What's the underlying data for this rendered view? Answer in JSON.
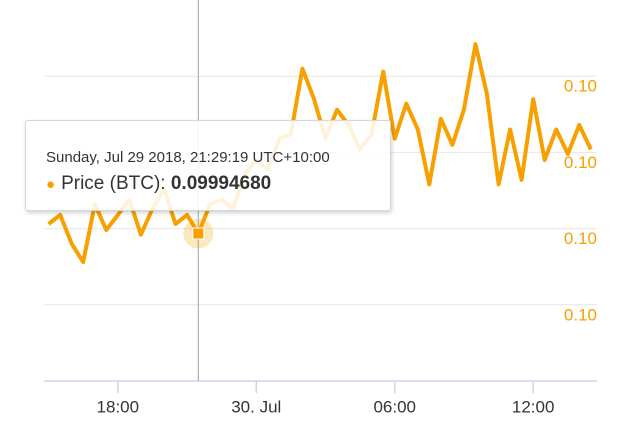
{
  "chart_data": {
    "type": "line",
    "color": "#f7a000",
    "xlim": [
      "2018-07-29T14:48",
      "2018-07-30T14:46"
    ],
    "xticks": [
      {
        "value": "2018-07-29T18:00",
        "label": "18:00"
      },
      {
        "value": "2018-07-30T00:00",
        "label": "30. Jul"
      },
      {
        "value": "2018-07-30T06:00",
        "label": "06:00"
      },
      {
        "value": "2018-07-30T12:00",
        "label": "12:00"
      }
    ],
    "ylim": [
      0.09985,
      0.1001
    ],
    "yticks": [
      {
        "value": 0.10005,
        "label": "0.10"
      },
      {
        "value": 0.1,
        "label": "0.10"
      },
      {
        "value": 0.09995,
        "label": "0.10"
      },
      {
        "value": 0.0999,
        "label": "0.10"
      }
    ],
    "grid": true,
    "x": [
      "2018-07-29T15:00",
      "2018-07-29T15:30",
      "2018-07-29T16:00",
      "2018-07-29T16:30",
      "2018-07-29T17:00",
      "2018-07-29T17:30",
      "2018-07-29T18:00",
      "2018-07-29T18:30",
      "2018-07-29T19:00",
      "2018-07-29T19:30",
      "2018-07-29T20:00",
      "2018-07-29T20:30",
      "2018-07-29T21:00",
      "2018-07-29T21:29:19",
      "2018-07-29T22:00",
      "2018-07-29T22:30",
      "2018-07-29T23:00",
      "2018-07-29T23:30",
      "2018-07-30T00:00",
      "2018-07-30T00:30",
      "2018-07-30T01:00",
      "2018-07-30T01:30",
      "2018-07-30T02:00",
      "2018-07-30T02:30",
      "2018-07-30T03:00",
      "2018-07-30T03:30",
      "2018-07-30T04:00",
      "2018-07-30T04:30",
      "2018-07-30T05:00",
      "2018-07-30T05:30",
      "2018-07-30T06:00",
      "2018-07-30T06:30",
      "2018-07-30T07:00",
      "2018-07-30T07:30",
      "2018-07-30T08:00",
      "2018-07-30T08:30",
      "2018-07-30T09:00",
      "2018-07-30T09:30",
      "2018-07-30T10:00",
      "2018-07-30T10:30",
      "2018-07-30T11:00",
      "2018-07-30T11:30",
      "2018-07-30T12:00",
      "2018-07-30T12:30",
      "2018-07-30T13:00",
      "2018-07-30T13:30",
      "2018-07-30T14:00",
      "2018-07-30T14:30"
    ],
    "series": [
      {
        "name": "Price (BTC):",
        "color": "#f7a000",
        "values": [
          0.099953,
          0.099959,
          0.09994,
          0.099928,
          0.099966,
          0.099949,
          0.099959,
          0.099969,
          0.099946,
          0.099963,
          0.099976,
          0.099953,
          0.099959,
          0.0999468,
          0.099966,
          0.099969,
          0.099963,
          0.099986,
          0.099995,
          0.099989,
          0.100009,
          0.100012,
          0.100055,
          0.100035,
          0.100009,
          0.100028,
          0.100018,
          0.100002,
          0.100012,
          0.100053,
          0.100009,
          0.100032,
          0.100015,
          0.099979,
          0.100022,
          0.100005,
          0.100028,
          0.100071,
          0.100038,
          0.099979,
          0.100015,
          0.099982,
          0.100035,
          0.099995,
          0.100015,
          0.099999,
          0.100018,
          0.100002
        ]
      }
    ],
    "tooltip": {
      "index": 13,
      "title": "Sunday, Jul 29 2018, 21:29:19 UTC+10:00",
      "value_label": "0.09994680"
    }
  }
}
